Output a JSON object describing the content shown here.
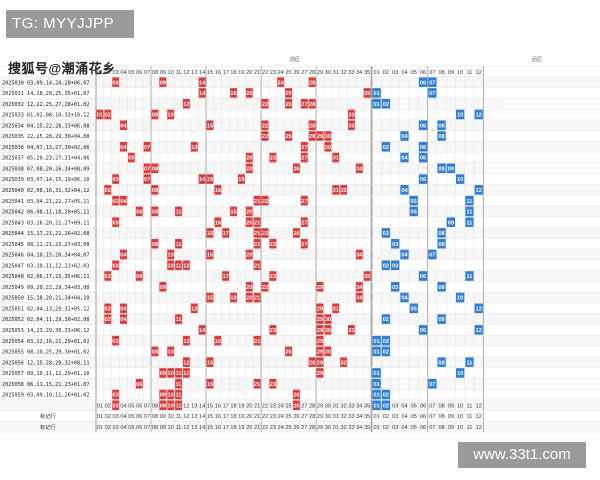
{
  "header": {
    "tg_badge": "TG: MYYJJPP",
    "watermark": "搜狐号@潮涌花乡",
    "front_section": "前区",
    "back_section": "后区",
    "site_badge": "www.33t1.com"
  },
  "columns": {
    "front": [
      "01",
      "02",
      "03",
      "04",
      "05",
      "06",
      "07",
      "08",
      "09",
      "10",
      "11",
      "12",
      "13",
      "14",
      "15",
      "16",
      "17",
      "18",
      "19",
      "20",
      "21",
      "22",
      "23",
      "24",
      "25",
      "26",
      "27",
      "28",
      "29",
      "30",
      "31",
      "32",
      "33",
      "34",
      "35"
    ],
    "back": [
      "01",
      "02",
      "03",
      "04",
      "05",
      "06",
      "07",
      "08",
      "09",
      "10",
      "11",
      "12"
    ]
  },
  "draws": [
    {
      "issue": "2025030",
      "text": "03,09,14,24,28+06,07",
      "front": [
        3,
        9,
        14,
        24,
        28
      ],
      "back": [
        6,
        7
      ]
    },
    {
      "issue": "2025031",
      "text": "14,18,20,25,35+01,07",
      "front": [
        14,
        18,
        20,
        25,
        35
      ],
      "back": [
        1,
        7
      ]
    },
    {
      "issue": "2025032",
      "text": "12,22,25,27,28+01,02",
      "front": [
        12,
        22,
        25,
        27,
        28
      ],
      "back": [
        1,
        2
      ]
    },
    {
      "issue": "2025033",
      "text": "01,02,08,10,33+10,12",
      "front": [
        1,
        2,
        8,
        10,
        33
      ],
      "back": [
        10,
        12
      ]
    },
    {
      "issue": "2025034",
      "text": "04,15,22,28,33+06,08",
      "front": [
        4,
        15,
        22,
        28,
        33
      ],
      "back": [
        6,
        8
      ]
    },
    {
      "issue": "2025035",
      "text": "22,25,28,29,30+04,08",
      "front": [
        22,
        25,
        28,
        29,
        30
      ],
      "back": [
        4,
        8
      ]
    },
    {
      "issue": "2025036",
      "text": "04,07,13,27,30+02,06",
      "front": [
        4,
        7,
        13,
        27,
        30
      ],
      "back": [
        2,
        6
      ]
    },
    {
      "issue": "2025037",
      "text": "05,20,23,27,31+04,06",
      "front": [
        5,
        20,
        23,
        27,
        31
      ],
      "back": [
        4,
        6
      ]
    },
    {
      "issue": "2025038",
      "text": "07,08,20,26,34+08,09",
      "front": [
        7,
        8,
        20,
        26,
        34
      ],
      "back": [
        8,
        9
      ]
    },
    {
      "issue": "2025039",
      "text": "03,07,14,15,19+06,10",
      "front": [
        3,
        7,
        14,
        15,
        19
      ],
      "back": [
        6,
        10
      ]
    },
    {
      "issue": "2025040",
      "text": "02,08,16,31,32+04,12",
      "front": [
        2,
        8,
        16,
        31,
        32
      ],
      "back": [
        4,
        12
      ]
    },
    {
      "issue": "2025041",
      "text": "03,04,21,22,27+05,11",
      "front": [
        3,
        4,
        21,
        22,
        27
      ],
      "back": [
        5,
        11
      ]
    },
    {
      "issue": "2025042",
      "text": "06,08,11,18,20+05,11",
      "front": [
        6,
        8,
        11,
        18,
        20
      ],
      "back": [
        5,
        11
      ]
    },
    {
      "issue": "2025043",
      "text": "03,16,20,21,27+09,11",
      "front": [
        3,
        16,
        20,
        21,
        27
      ],
      "back": [
        9,
        11
      ]
    },
    {
      "issue": "2025044",
      "text": "15,17,21,22,26+02,08",
      "front": [
        15,
        17,
        21,
        22,
        26
      ],
      "back": [
        2,
        8
      ]
    },
    {
      "issue": "2025045",
      "text": "08,11,21,23,27+03,08",
      "front": [
        8,
        11,
        21,
        23,
        27
      ],
      "back": [
        3,
        8
      ]
    },
    {
      "issue": "2025046",
      "text": "04,10,15,20,34+04,07",
      "front": [
        4,
        10,
        15,
        20,
        34
      ],
      "back": [
        4,
        7
      ]
    },
    {
      "issue": "2025047",
      "text": "03,10,11,12,21+02,03",
      "front": [
        3,
        10,
        11,
        12,
        21
      ],
      "back": [
        2,
        3
      ]
    },
    {
      "issue": "2025048",
      "text": "02,06,17,23,35+06,11",
      "front": [
        2,
        6,
        17,
        23,
        35
      ],
      "back": [
        6,
        11
      ]
    },
    {
      "issue": "2025049",
      "text": "09,20,22,29,34+03,08",
      "front": [
        9,
        20,
        22,
        29,
        34
      ],
      "back": [
        3,
        8
      ]
    },
    {
      "issue": "2025050",
      "text": "15,18,20,21,34+04,10",
      "front": [
        15,
        18,
        20,
        21,
        34
      ],
      "back": [
        4,
        10
      ]
    },
    {
      "issue": "2025051",
      "text": "02,04,13,29,31+05,12",
      "front": [
        2,
        4,
        13,
        29,
        31
      ],
      "back": [
        5,
        12
      ]
    },
    {
      "issue": "2025052",
      "text": "02,04,11,29,30+02,08",
      "front": [
        2,
        4,
        11,
        29,
        30
      ],
      "back": [
        2,
        8
      ]
    },
    {
      "issue": "2025053",
      "text": "14,23,29,30,33+06,12",
      "front": [
        14,
        23,
        29,
        30,
        33
      ],
      "back": [
        6,
        12
      ]
    },
    {
      "issue": "2025054",
      "text": "03,12,16,21,29+01,02",
      "front": [
        3,
        12,
        16,
        21,
        29
      ],
      "back": [
        1,
        2
      ]
    },
    {
      "issue": "2025055",
      "text": "08,10,25,29,30+01,02",
      "front": [
        8,
        10,
        25,
        29,
        30
      ],
      "back": [
        1,
        2
      ]
    },
    {
      "issue": "2025056",
      "text": "12,15,28,29,32+08,11",
      "front": [
        12,
        15,
        28,
        29,
        32
      ],
      "back": [
        8,
        11
      ]
    },
    {
      "issue": "2025057",
      "text": "09,10,11,12,29+01,10",
      "front": [
        9,
        10,
        11,
        12,
        29
      ],
      "back": [
        1,
        10
      ]
    },
    {
      "issue": "2025058",
      "text": "06,11,15,21,23+01,07",
      "front": [
        6,
        11,
        15,
        21,
        23
      ],
      "back": [
        1,
        7
      ]
    },
    {
      "issue": "2025059",
      "text": "03,09,10,11,26+01,02",
      "front": [
        3,
        9,
        10,
        11,
        26
      ],
      "back": [
        1,
        2
      ]
    }
  ],
  "footer_rows": [
    {
      "label": "",
      "highlight_front": [
        3,
        9,
        10,
        11,
        26
      ],
      "highlight_back": [
        1,
        2
      ]
    },
    {
      "label": "标记行",
      "highlight_front": [],
      "highlight_back": []
    },
    {
      "label": "标记行",
      "highlight_front": [],
      "highlight_back": []
    }
  ],
  "colors": {
    "front_ball": "#e03a3a",
    "back_ball": "#2f7fd6",
    "grid": "#e6e6e6",
    "section_line": "#9a9a9a"
  }
}
